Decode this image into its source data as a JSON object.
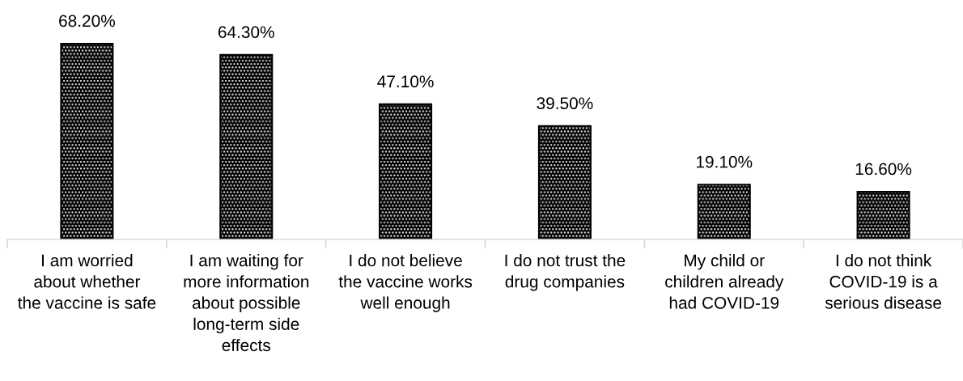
{
  "chart_data": {
    "type": "bar",
    "categories": [
      "I am worried\nabout whether\nthe vaccine is safe",
      "I am waiting for\nmore information\nabout possible\nlong-term side\neffects",
      "I do not believe\nthe vaccine works\nwell enough",
      "I do not trust the\ndrug companies",
      "My child or\nchildren already\nhad COVID-19",
      "I do not think\nCOVID-19 is a\nserious disease"
    ],
    "values": [
      68.2,
      64.3,
      47.1,
      39.5,
      19.1,
      16.6
    ],
    "value_labels": [
      "68.20%",
      "64.30%",
      "47.10%",
      "39.50%",
      "19.10%",
      "16.60%"
    ],
    "color": "#000000",
    "tick_labels": "x"
  }
}
